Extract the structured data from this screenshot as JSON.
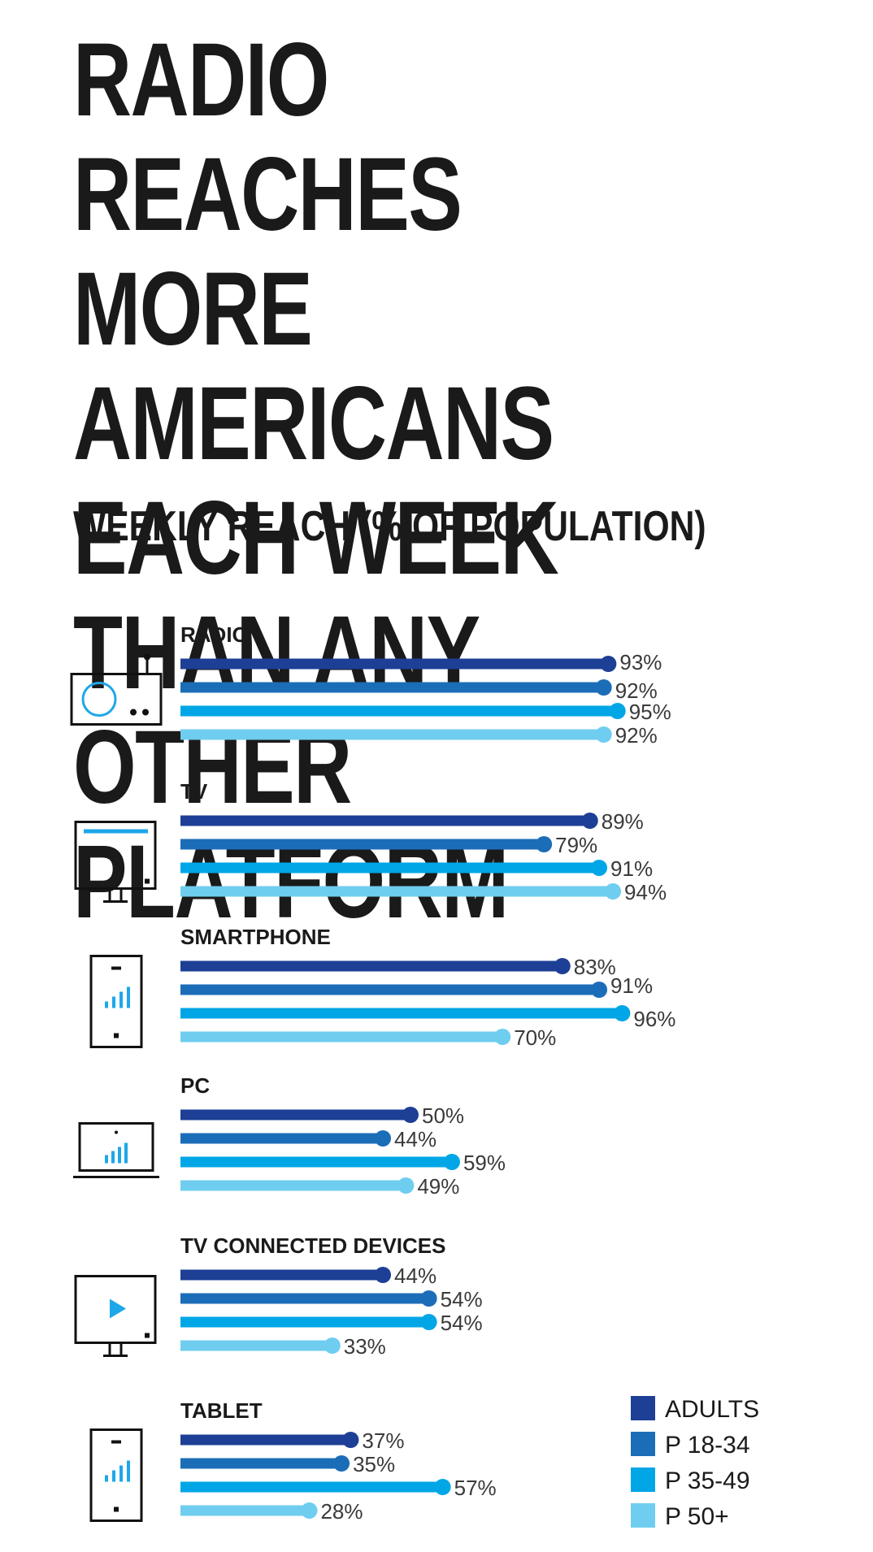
{
  "chart_data": {
    "type": "bar",
    "orientation": "horizontal",
    "title": "RADIO REACHES MORE AMERICANS EACH WEEK THAN ANY OTHER PLATFORM",
    "subtitle": "WEEKLY REACH (% OF POPULATION)",
    "xlim": [
      0,
      100
    ],
    "grid": false,
    "legend_position": "bottom-right",
    "categories": [
      "RADIO",
      "TV",
      "SMARTPHONE",
      "PC",
      "TV CONNECTED DEVICES",
      "TABLET"
    ],
    "category_icons": [
      "radio-icon",
      "tv-icon",
      "smartphone-icon",
      "pc-icon",
      "tv-connected-device-icon",
      "tablet-icon"
    ],
    "series": [
      {
        "name": "ADULTS",
        "color": "#1e3f96",
        "values": [
          93,
          89,
          83,
          50,
          44,
          37
        ]
      },
      {
        "name": "P 18-34",
        "color": "#1c6db8",
        "values": [
          92,
          79,
          91,
          44,
          54,
          35
        ]
      },
      {
        "name": "P 35-49",
        "color": "#00a6e6",
        "values": [
          95,
          91,
          96,
          59,
          54,
          57
        ]
      },
      {
        "name": "P 50+",
        "color": "#6fcdf0",
        "values": [
          92,
          94,
          70,
          49,
          33,
          28
        ]
      }
    ],
    "value_suffix": "%"
  }
}
